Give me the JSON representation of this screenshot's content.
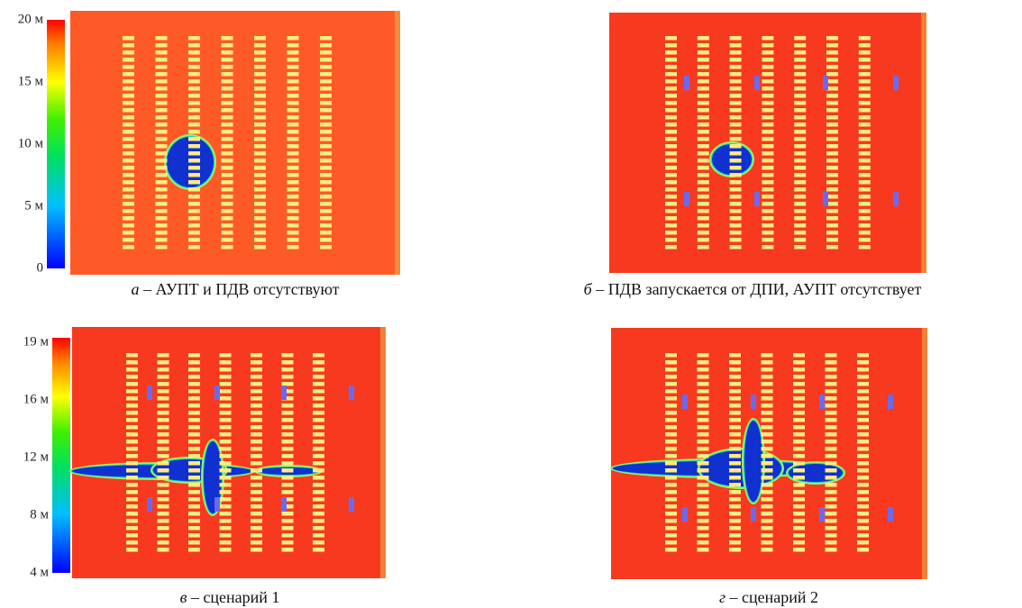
{
  "colorbars": [
    {
      "labels": [
        "20 м",
        "15 м",
        "10 м",
        "5 м",
        "0"
      ]
    },
    {
      "labels": [
        "19 м",
        "16 м",
        "12 м",
        "8 м",
        "4 м"
      ]
    }
  ],
  "panels": [
    {
      "letter": "а",
      "caption": "– АУПТ и ПДВ отсутствуют"
    },
    {
      "letter": "б",
      "caption": "– ПДВ запускается от ДПИ, АУПТ отсутствует"
    },
    {
      "letter": "в",
      "caption": "– сценарий 1"
    },
    {
      "letter": "г",
      "caption": "– сценарий 2"
    }
  ]
}
